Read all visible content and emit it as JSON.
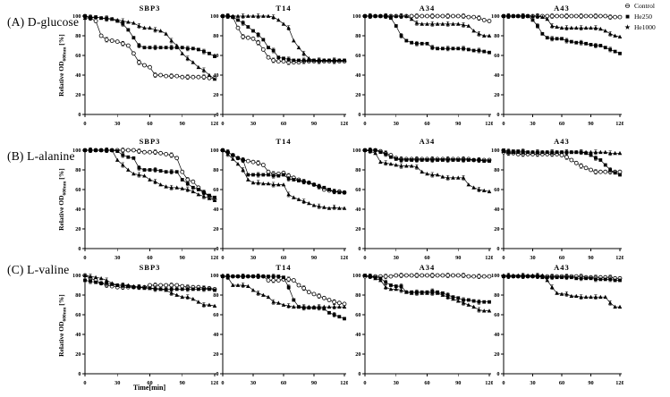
{
  "figure": {
    "row_labels": [
      "(A) D-glucose",
      "(B) L-alanine",
      "(C) L-valine"
    ],
    "col_titles": [
      "SBP3",
      "T14",
      "A34",
      "A43"
    ],
    "y_axis_label_prefix": "Relative OD",
    "y_axis_label_sub": "600nm",
    "y_axis_label_suffix": " [%]",
    "x_axis_label": "Time[min]",
    "legend": [
      {
        "label": "Control",
        "marker": "open-circle-strike-icon",
        "glyph": "⊖"
      },
      {
        "label": "He250",
        "marker": "filled-square-icon",
        "glyph": "■"
      },
      {
        "label": "He1000",
        "marker": "filled-star-icon",
        "glyph": "★"
      }
    ],
    "colors": {
      "foreground": "#000000",
      "background": "#ffffff"
    }
  },
  "chart_data": {
    "type": "line",
    "x": [
      0,
      5,
      10,
      15,
      20,
      25,
      30,
      35,
      40,
      45,
      50,
      55,
      60,
      65,
      70,
      75,
      80,
      85,
      90,
      95,
      100,
      105,
      110,
      115,
      120
    ],
    "x_ticks": [
      0,
      30,
      60,
      90,
      120
    ],
    "y_ticks": [
      0,
      20,
      40,
      60,
      80,
      100
    ],
    "xlim": [
      0,
      120
    ],
    "ylim": [
      0,
      100
    ],
    "grid": false,
    "legend_position": "top-right",
    "series_names": [
      "Control",
      "He250",
      "He1000"
    ],
    "panels": [
      {
        "substrate": "D-glucose",
        "strain": "SBP3",
        "series": {
          "Control": [
            100,
            98,
            95,
            80,
            76,
            75,
            74,
            72,
            70,
            62,
            53,
            50,
            48,
            40,
            40,
            39,
            39,
            39,
            38,
            38,
            38,
            38,
            38,
            37,
            37
          ],
          "He250": [
            100,
            99,
            99,
            98,
            98,
            97,
            95,
            92,
            86,
            78,
            70,
            68,
            68,
            68,
            68,
            68,
            68,
            68,
            68,
            67,
            67,
            66,
            64,
            62,
            59
          ],
          "He1000": [
            98,
            98,
            99,
            98,
            97,
            97,
            96,
            95,
            94,
            93,
            90,
            88,
            88,
            86,
            85,
            82,
            75,
            70,
            62,
            57,
            53,
            48,
            45,
            40,
            36
          ]
        }
      },
      {
        "substrate": "D-glucose",
        "strain": "T14",
        "series": {
          "Control": [
            100,
            100,
            99,
            88,
            79,
            78,
            77,
            73,
            66,
            58,
            55,
            54,
            54,
            53,
            53,
            53,
            54,
            54,
            54,
            54,
            54,
            54,
            54,
            54,
            54
          ],
          "He250": [
            100,
            100,
            99,
            96,
            93,
            89,
            85,
            81,
            76,
            68,
            65,
            58,
            57,
            56,
            55,
            55,
            55,
            55,
            55,
            55,
            55,
            55,
            55,
            55,
            55
          ],
          "He1000": [
            100,
            100,
            100,
            100,
            100,
            100,
            100,
            100,
            100,
            100,
            99,
            96,
            92,
            88,
            75,
            68,
            62,
            57,
            55,
            55,
            55,
            55,
            55,
            55,
            55
          ]
        }
      },
      {
        "substrate": "D-glucose",
        "strain": "A34",
        "series": {
          "Control": [
            100,
            100,
            100,
            100,
            100,
            100,
            100,
            100,
            100,
            100,
            100,
            100,
            100,
            100,
            100,
            100,
            100,
            100,
            100,
            100,
            99,
            99,
            98,
            96,
            95
          ],
          "He250": [
            100,
            100,
            100,
            100,
            100,
            98,
            90,
            80,
            75,
            73,
            72,
            72,
            72,
            68,
            67,
            67,
            67,
            67,
            67,
            67,
            66,
            65,
            65,
            64,
            63
          ],
          "He1000": [
            100,
            100,
            100,
            100,
            100,
            100,
            100,
            100,
            100,
            97,
            93,
            92,
            92,
            92,
            92,
            92,
            92,
            92,
            92,
            91,
            90,
            85,
            82,
            80,
            80
          ]
        }
      },
      {
        "substrate": "D-glucose",
        "strain": "A43",
        "series": {
          "Control": [
            100,
            100,
            100,
            100,
            100,
            100,
            100,
            100,
            100,
            100,
            100,
            100,
            100,
            100,
            100,
            100,
            100,
            100,
            100,
            100,
            100,
            100,
            99,
            99,
            99
          ],
          "He250": [
            100,
            100,
            100,
            100,
            100,
            100,
            96,
            90,
            82,
            78,
            77,
            77,
            77,
            75,
            74,
            73,
            73,
            72,
            71,
            70,
            70,
            68,
            66,
            64,
            62
          ],
          "He1000": [
            100,
            100,
            100,
            100,
            100,
            100,
            100,
            100,
            99,
            97,
            90,
            89,
            88,
            88,
            88,
            88,
            88,
            88,
            88,
            88,
            87,
            85,
            82,
            80,
            79
          ]
        }
      },
      {
        "substrate": "L-alanine",
        "strain": "SBP3",
        "series": {
          "Control": [
            100,
            100,
            100,
            100,
            100,
            100,
            100,
            100,
            100,
            100,
            99,
            98,
            98,
            98,
            97,
            96,
            95,
            92,
            78,
            70,
            68,
            62,
            57,
            53,
            50
          ],
          "He250": [
            100,
            100,
            100,
            100,
            100,
            100,
            99,
            95,
            93,
            92,
            82,
            80,
            80,
            80,
            79,
            78,
            78,
            78,
            70,
            66,
            62,
            60,
            57,
            54,
            52
          ],
          "He1000": [
            100,
            100,
            100,
            100,
            100,
            100,
            90,
            85,
            80,
            76,
            75,
            74,
            70,
            68,
            65,
            63,
            62,
            62,
            61,
            60,
            58,
            55,
            53,
            51,
            49
          ]
        }
      },
      {
        "substrate": "L-alanine",
        "strain": "T14",
        "series": {
          "Control": [
            100,
            98,
            95,
            92,
            90,
            89,
            88,
            87,
            85,
            78,
            76,
            76,
            77,
            74,
            72,
            70,
            68,
            67,
            65,
            63,
            60,
            59,
            58,
            58,
            57
          ],
          "He250": [
            100,
            98,
            95,
            92,
            90,
            75,
            75,
            75,
            75,
            75,
            74,
            74,
            75,
            71,
            70,
            69,
            68,
            67,
            65,
            63,
            62,
            60,
            58,
            57,
            57
          ],
          "He1000": [
            100,
            96,
            91,
            86,
            80,
            70,
            67,
            67,
            66,
            66,
            65,
            65,
            65,
            55,
            52,
            50,
            48,
            46,
            44,
            43,
            42,
            41,
            42,
            41,
            41
          ]
        }
      },
      {
        "substrate": "L-alanine",
        "strain": "A34",
        "series": {
          "Control": [
            100,
            100,
            100,
            99,
            97,
            95,
            92,
            91,
            91,
            91,
            91,
            91,
            91,
            91,
            91,
            91,
            91,
            91,
            91,
            91,
            91,
            90,
            90,
            90,
            90
          ],
          "He250": [
            100,
            100,
            100,
            98,
            96,
            93,
            91,
            90,
            90,
            90,
            90,
            90,
            90,
            90,
            90,
            90,
            90,
            90,
            90,
            90,
            90,
            90,
            90,
            89,
            89
          ],
          "He1000": [
            100,
            99,
            97,
            88,
            87,
            86,
            85,
            84,
            84,
            84,
            83,
            78,
            76,
            75,
            75,
            73,
            72,
            72,
            72,
            72,
            65,
            62,
            60,
            59,
            58
          ]
        }
      },
      {
        "substrate": "L-alanine",
        "strain": "A43",
        "series": {
          "Control": [
            98,
            97,
            97,
            96,
            96,
            96,
            96,
            96,
            96,
            96,
            96,
            96,
            95,
            93,
            90,
            87,
            84,
            82,
            80,
            78,
            78,
            78,
            78,
            78,
            78
          ],
          "He250": [
            100,
            99,
            99,
            99,
            99,
            98,
            98,
            98,
            98,
            98,
            98,
            98,
            98,
            98,
            98,
            98,
            98,
            97,
            95,
            92,
            90,
            85,
            80,
            77,
            75
          ],
          "He1000": [
            99,
            98,
            98,
            98,
            98,
            98,
            98,
            98,
            98,
            98,
            98,
            98,
            98,
            98,
            98,
            98,
            98,
            98,
            98,
            98,
            98,
            98,
            97,
            97,
            97
          ]
        }
      },
      {
        "substrate": "L-valine",
        "strain": "SBP3",
        "series": {
          "Control": [
            100,
            97,
            95,
            92,
            90,
            89,
            88,
            88,
            88,
            88,
            88,
            88,
            90,
            90,
            90,
            90,
            90,
            90,
            89,
            88,
            88,
            88,
            87,
            87,
            86
          ],
          "He250": [
            95,
            94,
            93,
            92,
            92,
            91,
            90,
            90,
            89,
            88,
            88,
            87,
            87,
            86,
            86,
            86,
            86,
            86,
            86,
            86,
            86,
            86,
            86,
            86,
            85
          ],
          "He1000": [
            100,
            99,
            98,
            97,
            95,
            92,
            90,
            90,
            90,
            89,
            88,
            88,
            87,
            87,
            86,
            85,
            82,
            80,
            78,
            78,
            76,
            73,
            70,
            70,
            69
          ]
        }
      },
      {
        "substrate": "L-valine",
        "strain": "T14",
        "series": {
          "Control": [
            99,
            99,
            99,
            99,
            99,
            99,
            99,
            99,
            99,
            95,
            95,
            95,
            96,
            96,
            95,
            90,
            87,
            83,
            81,
            79,
            77,
            75,
            73,
            72,
            71
          ],
          "He250": [
            99,
            99,
            99,
            99,
            99,
            99,
            99,
            99,
            99,
            99,
            99,
            99,
            98,
            88,
            75,
            68,
            67,
            67,
            67,
            67,
            66,
            62,
            60,
            58,
            56
          ],
          "He1000": [
            100,
            98,
            90,
            90,
            90,
            89,
            85,
            82,
            80,
            78,
            73,
            72,
            70,
            69,
            68,
            68,
            68,
            68,
            68,
            68,
            68,
            68,
            68,
            68,
            68
          ]
        }
      },
      {
        "substrate": "L-valine",
        "strain": "A34",
        "series": {
          "Control": [
            99,
            99,
            99,
            99,
            99,
            99,
            100,
            100,
            100,
            100,
            100,
            100,
            100,
            100,
            100,
            100,
            100,
            100,
            100,
            100,
            99,
            99,
            99,
            99,
            99
          ],
          "He250": [
            100,
            99,
            98,
            97,
            93,
            90,
            89,
            89,
            83,
            83,
            83,
            83,
            83,
            84,
            83,
            82,
            80,
            78,
            77,
            75,
            75,
            74,
            73,
            73,
            73
          ],
          "He1000": [
            100,
            99,
            97,
            95,
            88,
            86,
            86,
            85,
            83,
            82,
            82,
            82,
            82,
            82,
            82,
            80,
            78,
            76,
            74,
            72,
            70,
            68,
            65,
            64,
            64
          ]
        }
      },
      {
        "substrate": "L-valine",
        "strain": "A43",
        "series": {
          "Control": [
            99,
            99,
            99,
            99,
            99,
            99,
            99,
            99,
            99,
            99,
            99,
            99,
            99,
            99,
            99,
            99,
            99,
            98,
            98,
            98,
            98,
            98,
            98,
            97,
            97
          ],
          "He250": [
            99,
            99,
            99,
            99,
            99,
            99,
            99,
            99,
            98,
            98,
            98,
            98,
            98,
            98,
            98,
            97,
            97,
            97,
            97,
            96,
            96,
            96,
            96,
            95,
            95
          ],
          "He1000": [
            100,
            100,
            100,
            100,
            100,
            100,
            100,
            100,
            100,
            95,
            88,
            82,
            81,
            81,
            79,
            79,
            78,
            78,
            78,
            78,
            78,
            78,
            72,
            68,
            68
          ]
        }
      }
    ]
  }
}
